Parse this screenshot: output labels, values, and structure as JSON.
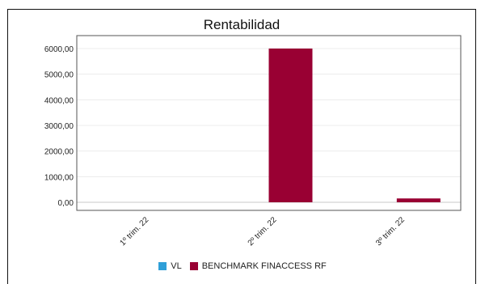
{
  "chart_data": {
    "type": "bar",
    "title": "Rentabilidad",
    "xlabel": "",
    "ylabel": "",
    "categories": [
      "1º trim. 22",
      "2º trim. 22",
      "3º trim. 22"
    ],
    "series": [
      {
        "name": "VL",
        "values": [
          0,
          0,
          0
        ],
        "color": "#2f9fd8"
      },
      {
        "name": "BENCHMARK FINACCESS RF",
        "values": [
          0,
          6000,
          150
        ],
        "color": "#990033"
      }
    ],
    "ylim": [
      0,
      6000
    ],
    "yticks": [
      "0,00",
      "1000,00",
      "2000,00",
      "3000,00",
      "4000,00",
      "5000,00",
      "6000,00"
    ],
    "grid": true,
    "legend_position": "bottom"
  }
}
